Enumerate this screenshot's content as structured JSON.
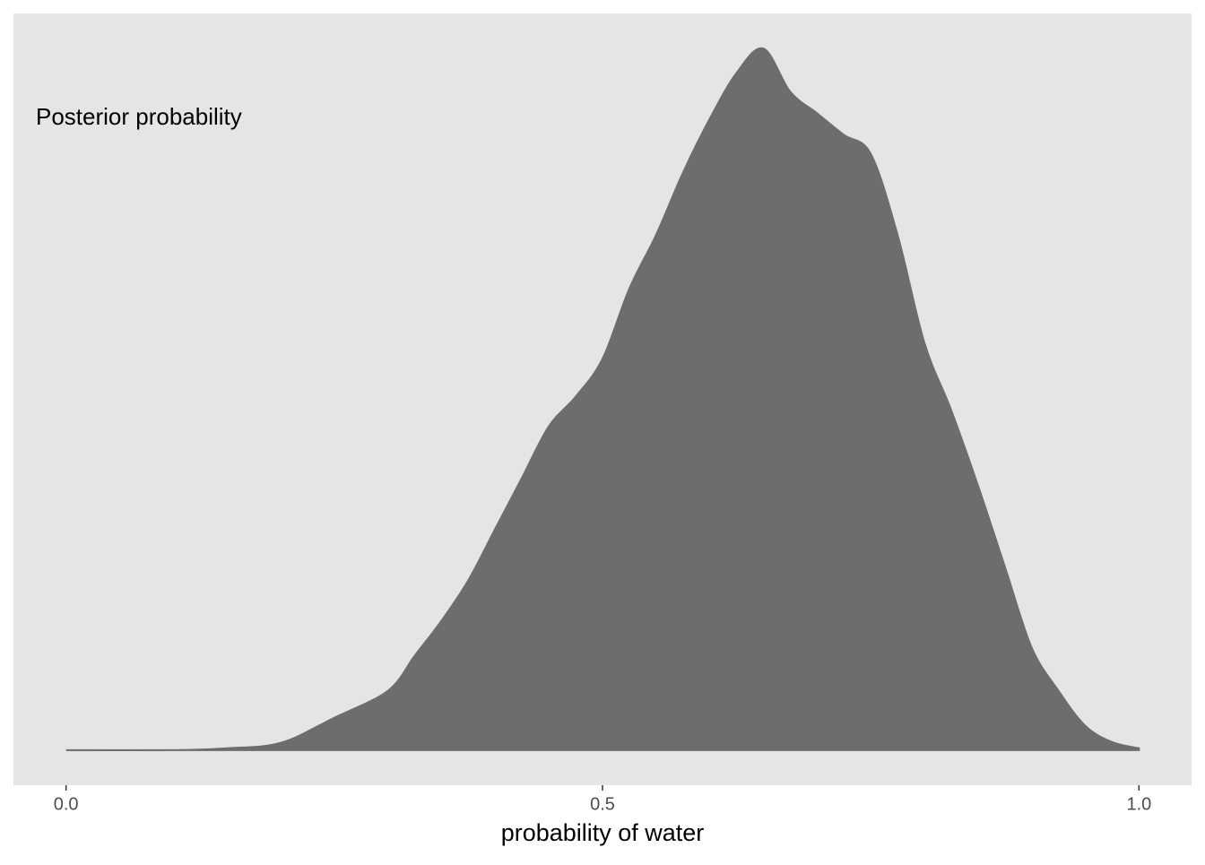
{
  "chart_data": {
    "type": "area",
    "annotation": "Posterior probability",
    "x_label": "probability of water",
    "x": [
      0,
      0.1,
      0.15,
      0.2,
      0.25,
      0.3,
      0.325,
      0.35,
      0.375,
      0.4,
      0.425,
      0.45,
      0.475,
      0.5,
      0.525,
      0.55,
      0.575,
      0.6,
      0.625,
      0.65,
      0.675,
      0.7,
      0.725,
      0.75,
      0.775,
      0.8,
      0.825,
      0.85,
      0.875,
      0.9,
      0.925,
      0.95,
      0.975,
      1.0
    ],
    "values": [
      0,
      0,
      0.007,
      0.027,
      0.12,
      0.22,
      0.35,
      0.48,
      0.63,
      0.82,
      1.01,
      1.2,
      1.31,
      1.45,
      1.71,
      1.91,
      2.14,
      2.34,
      2.51,
      2.6,
      2.44,
      2.36,
      2.28,
      2.21,
      1.91,
      1.51,
      1.26,
      0.98,
      0.68,
      0.38,
      0.22,
      0.09,
      0.03,
      0.007
    ],
    "color": "#6d6d6d",
    "xlim": [
      -0.049,
      1.049
    ],
    "ylim": [
      -0.13,
      2.73
    ],
    "xticks": [
      {
        "value": 0,
        "label": "0.0"
      },
      {
        "value": 0.5,
        "label": "0.5"
      },
      {
        "value": 1.0,
        "label": "1.0"
      }
    ]
  }
}
